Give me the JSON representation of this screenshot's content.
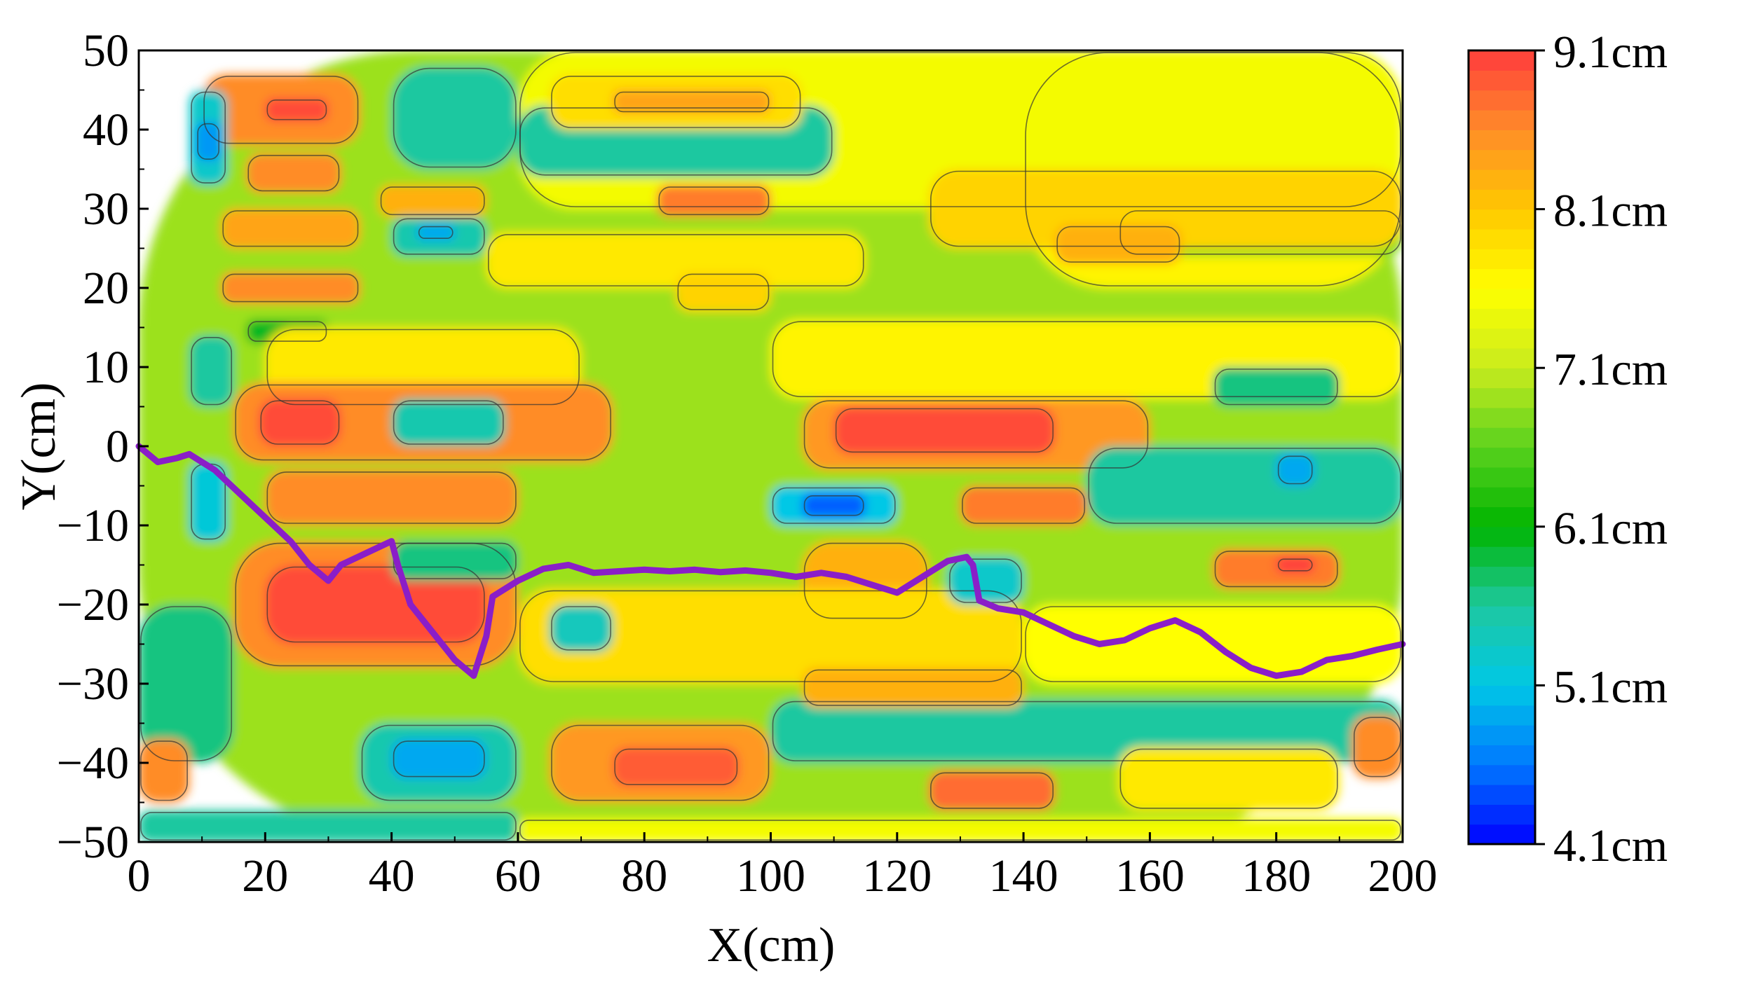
{
  "chart_data": {
    "type": "heatmap",
    "title": "",
    "xlabel": "X(cm)",
    "ylabel": "Y(cm)",
    "xlim": [
      0,
      200
    ],
    "ylim": [
      -50,
      50
    ],
    "x_ticks": [
      0,
      20,
      40,
      60,
      80,
      100,
      120,
      140,
      160,
      180,
      200
    ],
    "y_ticks": [
      50,
      40,
      30,
      20,
      10,
      0,
      -10,
      -20,
      -30,
      -40,
      -50
    ],
    "x_tick_labels": [
      "0",
      "20",
      "40",
      "60",
      "80",
      "100",
      "120",
      "140",
      "160",
      "180",
      "200"
    ],
    "y_tick_labels": [
      "50",
      "40",
      "30",
      "20",
      "10",
      "0",
      "−10",
      "−20",
      "−30",
      "−40",
      "−50"
    ],
    "grid": false,
    "colorbar": {
      "min": 4.1,
      "max": 9.1,
      "ticks": [
        9.1,
        8.1,
        7.1,
        6.1,
        5.1,
        4.1
      ],
      "tick_labels": [
        "9.1cm",
        "8.1cm",
        "7.1cm",
        "6.1cm",
        "5.1cm",
        "4.1cm"
      ],
      "colors": [
        "#0000ff",
        "#0078ff",
        "#00c8e6",
        "#1ec8a0",
        "#00b400",
        "#5ad21e",
        "#c8eb1e",
        "#ffff00",
        "#ffc800",
        "#ff8c28",
        "#ff3c3c"
      ]
    },
    "regions": [
      {
        "x0": 0,
        "x1": 200,
        "y0": -50,
        "y1": 50,
        "v": 6.9
      },
      {
        "x0": 140,
        "x1": 200,
        "y0": 20,
        "y1": 50,
        "v": 7.7
      },
      {
        "x0": 60,
        "x1": 200,
        "y0": 30,
        "y1": 50,
        "v": 7.5
      },
      {
        "x0": 10,
        "x1": 35,
        "y0": 38,
        "y1": 47,
        "v": 8.6
      },
      {
        "x0": 20,
        "x1": 30,
        "y0": 41,
        "y1": 44,
        "v": 9.0
      },
      {
        "x0": 40,
        "x1": 60,
        "y0": 35,
        "y1": 48,
        "v": 5.6
      },
      {
        "x0": 60,
        "x1": 110,
        "y0": 34,
        "y1": 43,
        "v": 5.6
      },
      {
        "x0": 65,
        "x1": 105,
        "y0": 40,
        "y1": 47,
        "v": 7.9
      },
      {
        "x0": 75,
        "x1": 100,
        "y0": 42,
        "y1": 45,
        "v": 8.4
      },
      {
        "x0": 8,
        "x1": 14,
        "y0": 33,
        "y1": 45,
        "v": 5.3
      },
      {
        "x0": 9,
        "x1": 13,
        "y0": 36,
        "y1": 41,
        "v": 4.8
      },
      {
        "x0": 17,
        "x1": 32,
        "y0": 32,
        "y1": 37,
        "v": 8.6
      },
      {
        "x0": 38,
        "x1": 55,
        "y0": 29,
        "y1": 33,
        "v": 8.3
      },
      {
        "x0": 82,
        "x1": 100,
        "y0": 29,
        "y1": 33,
        "v": 8.7
      },
      {
        "x0": 40,
        "x1": 55,
        "y0": 24,
        "y1": 29,
        "v": 5.5
      },
      {
        "x0": 44,
        "x1": 50,
        "y0": 26,
        "y1": 28,
        "v": 4.9
      },
      {
        "x0": 13,
        "x1": 35,
        "y0": 25,
        "y1": 30,
        "v": 8.4
      },
      {
        "x0": 155,
        "x1": 200,
        "y0": 24,
        "y1": 30,
        "v": 6.8
      },
      {
        "x0": 125,
        "x1": 200,
        "y0": 25,
        "y1": 35,
        "v": 8.0
      },
      {
        "x0": 145,
        "x1": 165,
        "y0": 23,
        "y1": 28,
        "v": 8.3
      },
      {
        "x0": 13,
        "x1": 35,
        "y0": 18,
        "y1": 22,
        "v": 8.6
      },
      {
        "x0": 55,
        "x1": 115,
        "y0": 20,
        "y1": 27,
        "v": 7.8
      },
      {
        "x0": 85,
        "x1": 100,
        "y0": 17,
        "y1": 22,
        "v": 8.0
      },
      {
        "x0": 17,
        "x1": 30,
        "y0": 13,
        "y1": 16,
        "v": 6.0
      },
      {
        "x0": 20,
        "x1": 70,
        "y0": 5,
        "y1": 15,
        "v": 7.8
      },
      {
        "x0": 8,
        "x1": 15,
        "y0": 5,
        "y1": 14,
        "v": 5.6
      },
      {
        "x0": 15,
        "x1": 75,
        "y0": -2,
        "y1": 8,
        "v": 8.6
      },
      {
        "x0": 19,
        "x1": 32,
        "y0": 0,
        "y1": 6,
        "v": 9.0
      },
      {
        "x0": 40,
        "x1": 58,
        "y0": 0,
        "y1": 6,
        "v": 5.5
      },
      {
        "x0": 100,
        "x1": 200,
        "y0": 6,
        "y1": 16,
        "v": 7.7
      },
      {
        "x0": 170,
        "x1": 190,
        "y0": 5,
        "y1": 10,
        "v": 5.7
      },
      {
        "x0": 105,
        "x1": 160,
        "y0": -3,
        "y1": 6,
        "v": 8.5
      },
      {
        "x0": 110,
        "x1": 145,
        "y0": -1,
        "y1": 5,
        "v": 9.0
      },
      {
        "x0": 150,
        "x1": 200,
        "y0": -10,
        "y1": 0,
        "v": 5.6
      },
      {
        "x0": 180,
        "x1": 186,
        "y0": -5,
        "y1": -1,
        "v": 4.9
      },
      {
        "x0": 8,
        "x1": 14,
        "y0": -12,
        "y1": -2,
        "v": 5.2
      },
      {
        "x0": 20,
        "x1": 60,
        "y0": -10,
        "y1": -3,
        "v": 8.6
      },
      {
        "x0": 100,
        "x1": 120,
        "y0": -10,
        "y1": -5,
        "v": 5.1
      },
      {
        "x0": 105,
        "x1": 115,
        "y0": -9,
        "y1": -6,
        "v": 4.5
      },
      {
        "x0": 130,
        "x1": 150,
        "y0": -10,
        "y1": -5,
        "v": 8.7
      },
      {
        "x0": 15,
        "x1": 60,
        "y0": -28,
        "y1": -12,
        "v": 8.6
      },
      {
        "x0": 20,
        "x1": 55,
        "y0": -25,
        "y1": -15,
        "v": 9.0
      },
      {
        "x0": 40,
        "x1": 60,
        "y0": -17,
        "y1": -12,
        "v": 5.7
      },
      {
        "x0": 105,
        "x1": 125,
        "y0": -22,
        "y1": -12,
        "v": 8.3
      },
      {
        "x0": 60,
        "x1": 140,
        "y0": -30,
        "y1": -18,
        "v": 7.9
      },
      {
        "x0": 65,
        "x1": 75,
        "y0": -26,
        "y1": -20,
        "v": 5.4
      },
      {
        "x0": 128,
        "x1": 140,
        "y0": -20,
        "y1": -14,
        "v": 5.3
      },
      {
        "x0": 170,
        "x1": 190,
        "y0": -18,
        "y1": -13,
        "v": 8.7
      },
      {
        "x0": 180,
        "x1": 186,
        "y0": -16,
        "y1": -14,
        "v": 9.1
      },
      {
        "x0": 140,
        "x1": 200,
        "y0": -30,
        "y1": -20,
        "v": 7.6
      },
      {
        "x0": 0,
        "x1": 15,
        "y0": -40,
        "y1": -20,
        "v": 5.7
      },
      {
        "x0": 100,
        "x1": 200,
        "y0": -40,
        "y1": -32,
        "v": 5.6
      },
      {
        "x0": 105,
        "x1": 140,
        "y0": -33,
        "y1": -28,
        "v": 8.3
      },
      {
        "x0": 35,
        "x1": 60,
        "y0": -45,
        "y1": -35,
        "v": 5.5
      },
      {
        "x0": 40,
        "x1": 55,
        "y0": -42,
        "y1": -37,
        "v": 4.9
      },
      {
        "x0": 65,
        "x1": 100,
        "y0": -45,
        "y1": -35,
        "v": 8.5
      },
      {
        "x0": 75,
        "x1": 95,
        "y0": -43,
        "y1": -38,
        "v": 8.9
      },
      {
        "x0": 125,
        "x1": 145,
        "y0": -46,
        "y1": -41,
        "v": 8.8
      },
      {
        "x0": 155,
        "x1": 190,
        "y0": -46,
        "y1": -38,
        "v": 7.8
      },
      {
        "x0": 0,
        "x1": 8,
        "y0": -45,
        "y1": -37,
        "v": 8.6
      },
      {
        "x0": 192,
        "x1": 200,
        "y0": -42,
        "y1": -34,
        "v": 8.6
      },
      {
        "x0": 0,
        "x1": 60,
        "y0": -50,
        "y1": -46,
        "v": 5.6
      },
      {
        "x0": 60,
        "x1": 200,
        "y0": -50,
        "y1": -47,
        "v": 7.5
      }
    ],
    "series": [
      {
        "x": [
          0,
          3,
          6,
          8,
          12,
          16,
          20,
          24,
          27,
          30,
          32,
          36,
          40,
          41,
          43,
          47,
          50,
          53,
          55,
          56,
          60,
          64,
          68,
          72,
          76,
          80,
          84,
          88,
          92,
          96,
          100,
          104,
          108,
          112,
          116,
          120,
          124,
          128,
          131,
          132,
          133,
          136,
          140,
          144,
          148,
          152,
          156,
          160,
          164,
          168,
          172,
          176,
          180,
          184,
          188,
          192,
          196,
          200
        ],
        "y": [
          0,
          -2,
          -1.5,
          -1,
          -3,
          -6,
          -9,
          -12,
          -15,
          -17,
          -15,
          -13.5,
          -12,
          -15,
          -20,
          -24,
          -27,
          -29,
          -24,
          -19,
          -17,
          -15.5,
          -15,
          -16,
          -15.8,
          -15.6,
          -15.8,
          -15.6,
          -15.9,
          -15.7,
          -16,
          -16.5,
          -16,
          -16.5,
          -17.5,
          -18.5,
          -16.5,
          -14.5,
          -14,
          -15,
          -19.5,
          -20.5,
          -21,
          -22.5,
          -24,
          -25,
          -24.5,
          -23,
          -22,
          -23.5,
          -26,
          -28,
          -29,
          -28.5,
          -27,
          -26.5,
          -25.7,
          -25
        ]
      }
    ]
  }
}
